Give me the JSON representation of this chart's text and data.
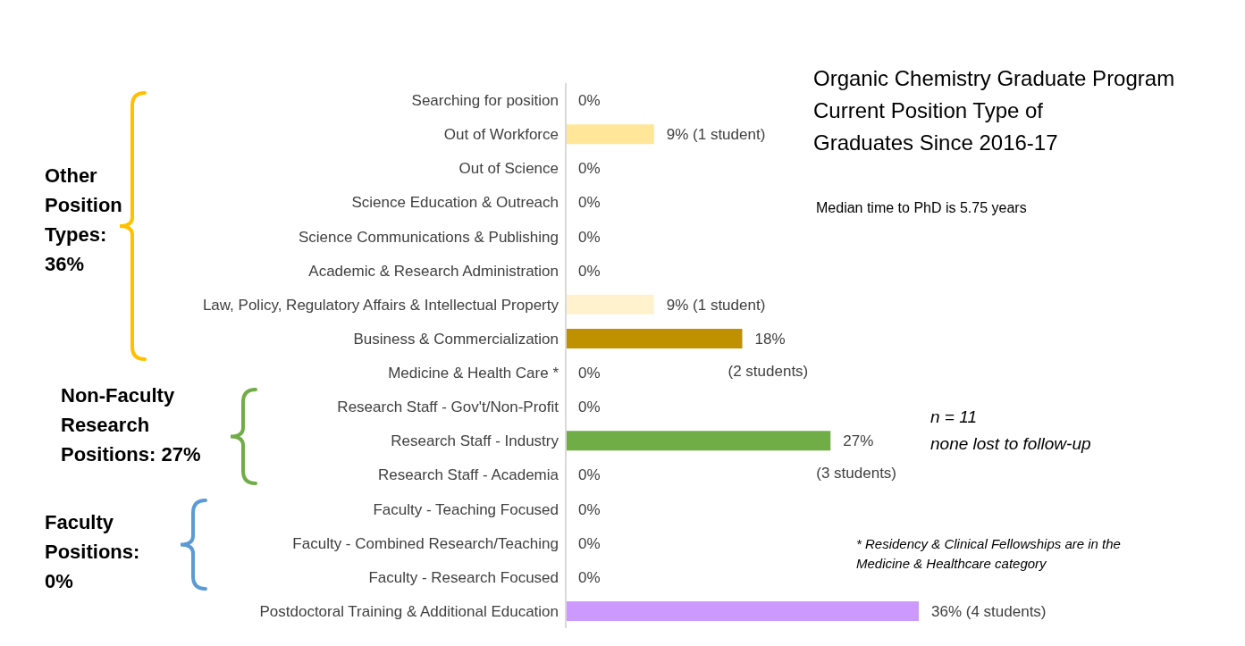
{
  "chart_data": {
    "type": "bar",
    "orientation": "horizontal",
    "title": "Organic Chemistry Graduate Program\nCurrent Position Type of\nGraduates Since 2016-17",
    "categories": [
      "Searching for position",
      "Out of Workforce",
      "Out of Science",
      "Science Education & Outreach",
      "Science Communications & Publishing",
      "Academic & Research Administration",
      "Law, Policy, Regulatory Affairs & Intellectual Property",
      "Business & Commercialization",
      "Medicine & Health Care *",
      "Research Staff - Gov't/Non-Profit",
      "Research Staff - Industry",
      "Research Staff - Academia",
      "Faculty - Teaching Focused",
      "Faculty - Combined Research/Teaching",
      "Faculty - Research Focused",
      "Postdoctoral Training & Additional Education"
    ],
    "values": [
      0,
      9,
      0,
      0,
      0,
      0,
      9,
      18,
      0,
      0,
      27,
      0,
      0,
      0,
      0,
      36
    ],
    "colors": [
      "#ffe699",
      "#ffe699",
      "#ffe699",
      "#ffe699",
      "#ffe699",
      "#ffe699",
      "#fff2cc",
      "#bf9000",
      "#70ad47",
      "#70ad47",
      "#70ad47",
      "#70ad47",
      "#5b9bd5",
      "#5b9bd5",
      "#5b9bd5",
      "#cc99ff"
    ],
    "value_labels": [
      "0%",
      "9% (1 student)",
      "0%",
      "0%",
      "0%",
      "0%",
      "9% (1 student)",
      "18% (2 students)",
      "0%",
      "0%",
      "27% (3 students)",
      "0%",
      "0%",
      "0%",
      "0%",
      "36% (4 students)"
    ],
    "annotations": [
      "Other Position Types: 36%",
      "Non-Faculty Research Positions: 27%",
      "Faculty Positions: 0%",
      "Median time to PhD is 5.75 years",
      "n = 11\nnone lost to follow-up",
      "* Residency & Clinical Fellowships are in the Medicine & Healthcare category"
    ]
  }
}
